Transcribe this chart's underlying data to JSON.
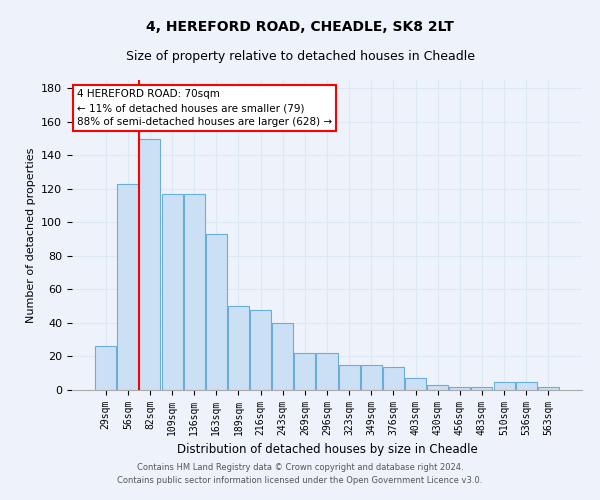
{
  "title1": "4, HEREFORD ROAD, CHEADLE, SK8 2LT",
  "title2": "Size of property relative to detached houses in Cheadle",
  "xlabel": "Distribution of detached houses by size in Cheadle",
  "ylabel": "Number of detached properties",
  "categories": [
    "29sqm",
    "56sqm",
    "82sqm",
    "109sqm",
    "136sqm",
    "163sqm",
    "189sqm",
    "216sqm",
    "243sqm",
    "269sqm",
    "296sqm",
    "323sqm",
    "349sqm",
    "376sqm",
    "403sqm",
    "430sqm",
    "456sqm",
    "483sqm",
    "510sqm",
    "536sqm",
    "563sqm"
  ],
  "values": [
    26,
    123,
    150,
    117,
    117,
    93,
    50,
    48,
    40,
    22,
    22,
    15,
    15,
    14,
    7,
    3,
    2,
    2,
    5,
    5,
    2
  ],
  "bar_color": "#cce0f5",
  "bar_edge_color": "#6aaed6",
  "grid_color": "#dde8f5",
  "vline_color": "red",
  "vline_x": 1.5,
  "annotation_text": "4 HEREFORD ROAD: 70sqm\n← 11% of detached houses are smaller (79)\n88% of semi-detached houses are larger (628) →",
  "annotation_box_color": "white",
  "annotation_box_edge": "red",
  "ylim": [
    0,
    185
  ],
  "yticks": [
    0,
    20,
    40,
    60,
    80,
    100,
    120,
    140,
    160,
    180
  ],
  "footer1": "Contains HM Land Registry data © Crown copyright and database right 2024.",
  "footer2": "Contains public sector information licensed under the Open Government Licence v3.0.",
  "background_color": "#eef2fa"
}
